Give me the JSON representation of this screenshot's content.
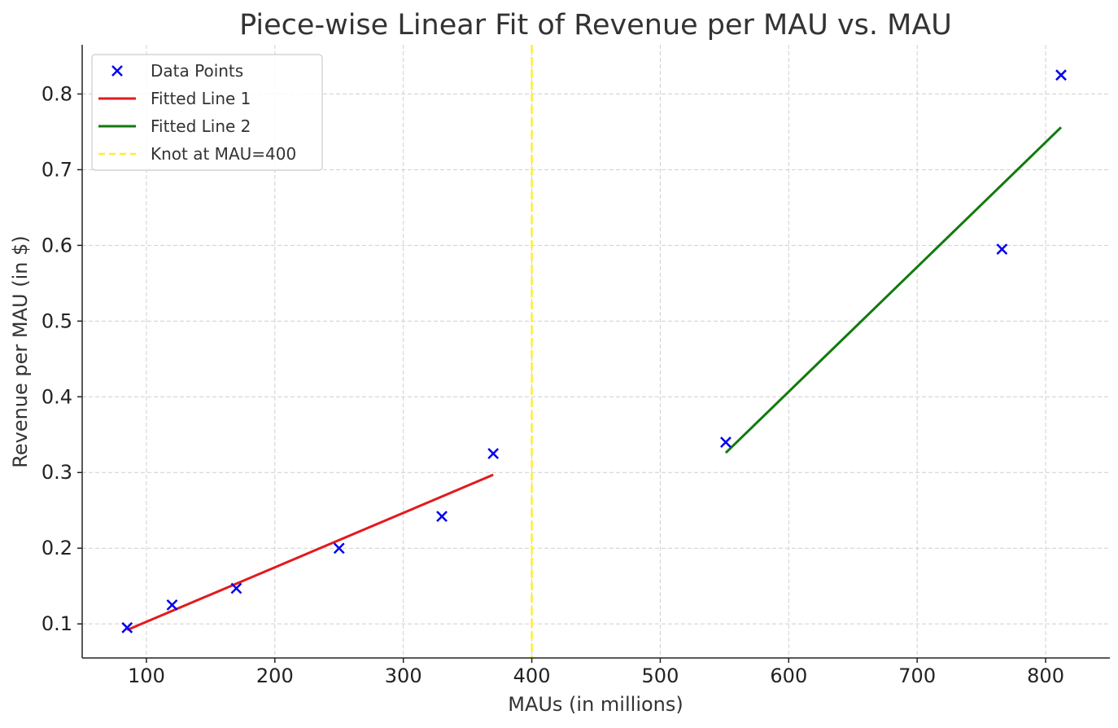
{
  "chart_data": {
    "type": "scatter",
    "title": "Piece-wise Linear Fit of Revenue per MAU vs. MAU",
    "xlabel": "MAUs (in millions)",
    "ylabel": "Revenue per MAU (in $)",
    "xlim": [
      50,
      850
    ],
    "ylim": [
      0.055,
      0.865
    ],
    "xticks": [
      100,
      200,
      300,
      400,
      500,
      600,
      700,
      800
    ],
    "yticks": [
      0.1,
      0.2,
      0.3,
      0.4,
      0.5,
      0.6,
      0.7,
      0.8
    ],
    "grid": true,
    "legend_position": "top-left",
    "series": [
      {
        "name": "Data Points",
        "kind": "scatter",
        "marker": "x",
        "color": "#0000ee",
        "x": [
          85,
          120,
          170,
          250,
          330,
          370,
          551,
          766,
          812
        ],
        "y": [
          0.095,
          0.125,
          0.147,
          0.2,
          0.242,
          0.325,
          0.34,
          0.595,
          0.825
        ]
      },
      {
        "name": "Fitted Line 1",
        "kind": "line",
        "color": "#e31a1c",
        "x": [
          85,
          370
        ],
        "y": [
          0.092,
          0.297
        ]
      },
      {
        "name": "Fitted Line 2",
        "kind": "line",
        "color": "#117a0e",
        "x": [
          551,
          812
        ],
        "y": [
          0.326,
          0.756
        ]
      },
      {
        "name": "Knot at MAU=400",
        "kind": "vline",
        "color": "#ffee33",
        "x": 400
      }
    ]
  }
}
